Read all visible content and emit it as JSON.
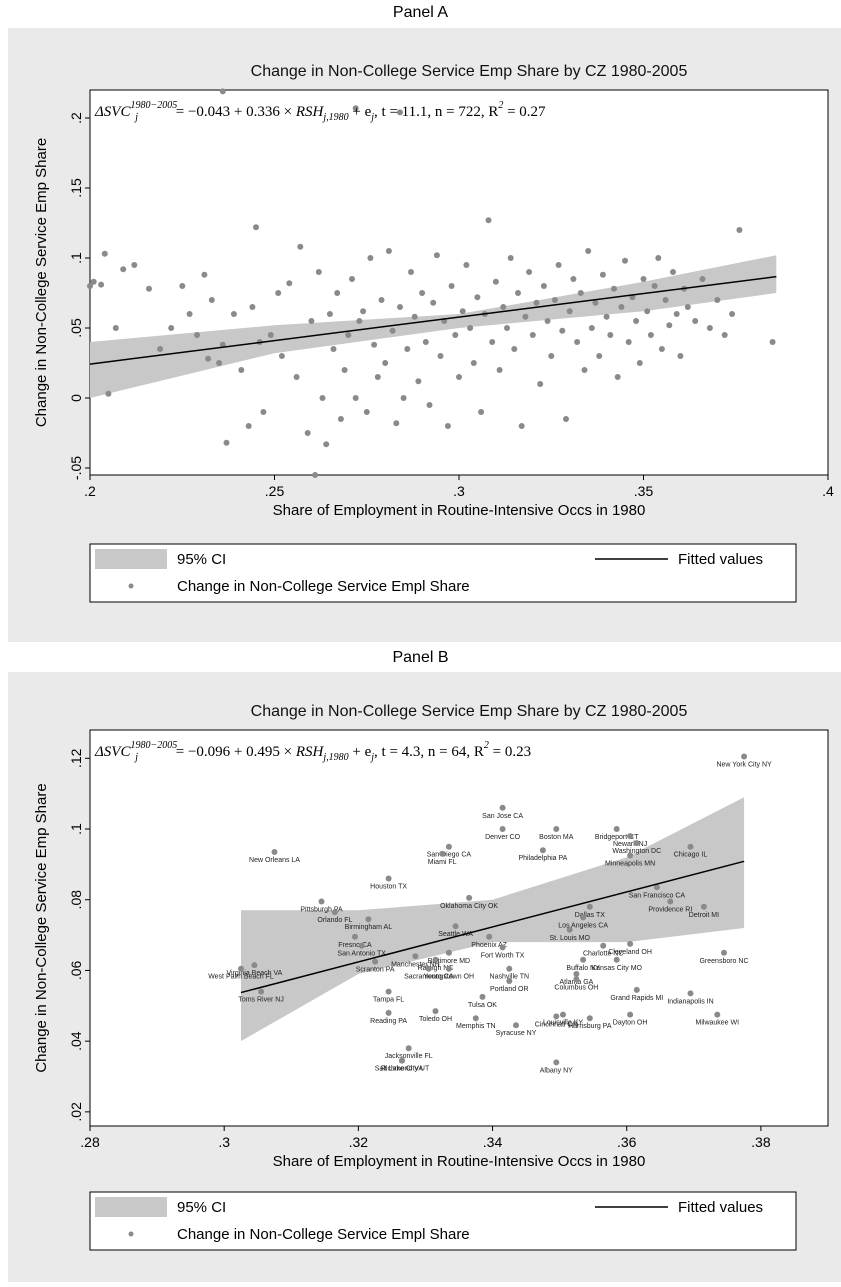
{
  "chart_data": [
    {
      "type": "scatter",
      "panel_label": "Panel A",
      "title": "Change in Non-College Service Emp Share by CZ 1980-2005",
      "equation": "ΔSVC_j^1980−2005 = −0.043 + 0.336 × RSH_j,1980 + e_j, t = 11.1, n = 722, R² = 0.27",
      "equation_parts": {
        "lhs": "ΔSVC",
        "sup": "1980−2005",
        "sub": "j",
        "rhs_a": " = −0.043 + 0.336 × ",
        "rsh": "RSH",
        "rsh_sub": "j,1980",
        "rhs_b": " + e",
        "e_sub": "j",
        "stats": ", t = 11.1, n = 722, R",
        "r_sup": "2",
        "r_val": " = 0.27"
      },
      "xlabel": "Share of Employment in Routine-Intensive Occs in 1980",
      "ylabel": "Change in Non-College Service Emp Share",
      "xlim": [
        0.2,
        0.4
      ],
      "ylim": [
        -0.055,
        0.22
      ],
      "xticks": [
        0.2,
        0.25,
        0.3,
        0.35,
        0.4
      ],
      "xtick_labels": [
        ".2",
        ".25",
        ".3",
        ".35",
        ".4"
      ],
      "yticks": [
        -0.05,
        0,
        0.05,
        0.1,
        0.15,
        0.2
      ],
      "ytick_labels": [
        "-.05",
        "0",
        ".05",
        ".1",
        ".15",
        ".2"
      ],
      "fit": {
        "intercept": -0.043,
        "slope": 0.336,
        "x_range": [
          0.2,
          0.386
        ]
      },
      "ci": {
        "x": [
          0.2,
          0.25,
          0.3,
          0.35,
          0.386
        ],
        "lower": [
          0.0,
          0.032,
          0.05,
          0.062,
          0.075
        ],
        "upper": [
          0.04,
          0.052,
          0.06,
          0.083,
          0.102
        ]
      },
      "legend": {
        "ci_label": "95% CI",
        "fit_label": "Fitted values",
        "points_label": "Change in Non-College Service Empl Share",
        "position": "bottom"
      },
      "points_note": "approximately 722 points; cloud estimated",
      "points": [
        [
          0.2,
          0.08
        ],
        [
          0.201,
          0.083
        ],
        [
          0.203,
          0.081
        ],
        [
          0.204,
          0.103
        ],
        [
          0.205,
          0.003
        ],
        [
          0.207,
          0.05
        ],
        [
          0.209,
          0.092
        ],
        [
          0.212,
          0.095
        ],
        [
          0.216,
          0.078
        ],
        [
          0.219,
          0.035
        ],
        [
          0.222,
          0.05
        ],
        [
          0.225,
          0.08
        ],
        [
          0.227,
          0.06
        ],
        [
          0.229,
          0.045
        ],
        [
          0.231,
          0.088
        ],
        [
          0.232,
          0.028
        ],
        [
          0.233,
          0.07
        ],
        [
          0.235,
          0.025
        ],
        [
          0.236,
          0.038
        ],
        [
          0.237,
          -0.032
        ],
        [
          0.239,
          0.06
        ],
        [
          0.241,
          0.02
        ],
        [
          0.243,
          -0.02
        ],
        [
          0.244,
          0.065
        ],
        [
          0.245,
          0.122
        ],
        [
          0.246,
          0.04
        ],
        [
          0.247,
          -0.01
        ],
        [
          0.249,
          0.045
        ],
        [
          0.251,
          0.075
        ],
        [
          0.252,
          0.03
        ],
        [
          0.254,
          0.082
        ],
        [
          0.256,
          0.015
        ],
        [
          0.257,
          0.108
        ],
        [
          0.259,
          -0.025
        ],
        [
          0.26,
          0.055
        ],
        [
          0.261,
          -0.055
        ],
        [
          0.262,
          0.09
        ],
        [
          0.263,
          0.0
        ],
        [
          0.264,
          -0.033
        ],
        [
          0.265,
          0.06
        ],
        [
          0.266,
          0.035
        ],
        [
          0.267,
          0.075
        ],
        [
          0.268,
          -0.015
        ],
        [
          0.269,
          0.02
        ],
        [
          0.27,
          0.045
        ],
        [
          0.271,
          0.085
        ],
        [
          0.272,
          0.0
        ],
        [
          0.273,
          0.055
        ],
        [
          0.274,
          0.062
        ],
        [
          0.275,
          -0.01
        ],
        [
          0.276,
          0.1
        ],
        [
          0.277,
          0.038
        ],
        [
          0.278,
          0.015
        ],
        [
          0.279,
          0.07
        ],
        [
          0.28,
          0.025
        ],
        [
          0.281,
          0.105
        ],
        [
          0.282,
          0.048
        ],
        [
          0.283,
          -0.018
        ],
        [
          0.284,
          0.065
        ],
        [
          0.285,
          0.0
        ],
        [
          0.286,
          0.035
        ],
        [
          0.287,
          0.09
        ],
        [
          0.288,
          0.058
        ],
        [
          0.289,
          0.012
        ],
        [
          0.29,
          0.075
        ],
        [
          0.291,
          0.04
        ],
        [
          0.292,
          -0.005
        ],
        [
          0.293,
          0.068
        ],
        [
          0.294,
          0.102
        ],
        [
          0.295,
          0.03
        ],
        [
          0.296,
          0.055
        ],
        [
          0.297,
          -0.02
        ],
        [
          0.298,
          0.08
        ],
        [
          0.299,
          0.045
        ],
        [
          0.3,
          0.015
        ],
        [
          0.301,
          0.062
        ],
        [
          0.302,
          0.095
        ],
        [
          0.303,
          0.05
        ],
        [
          0.304,
          0.025
        ],
        [
          0.305,
          0.072
        ],
        [
          0.306,
          -0.01
        ],
        [
          0.307,
          0.06
        ],
        [
          0.308,
          0.127
        ],
        [
          0.309,
          0.04
        ],
        [
          0.31,
          0.083
        ],
        [
          0.311,
          0.02
        ],
        [
          0.312,
          0.065
        ],
        [
          0.313,
          0.05
        ],
        [
          0.314,
          0.1
        ],
        [
          0.315,
          0.035
        ],
        [
          0.316,
          0.075
        ],
        [
          0.317,
          -0.02
        ],
        [
          0.318,
          0.058
        ],
        [
          0.319,
          0.09
        ],
        [
          0.32,
          0.045
        ],
        [
          0.321,
          0.068
        ],
        [
          0.322,
          0.01
        ],
        [
          0.323,
          0.08
        ],
        [
          0.324,
          0.055
        ],
        [
          0.325,
          0.03
        ],
        [
          0.326,
          0.07
        ],
        [
          0.327,
          0.095
        ],
        [
          0.328,
          0.048
        ],
        [
          0.329,
          -0.015
        ],
        [
          0.33,
          0.062
        ],
        [
          0.331,
          0.085
        ],
        [
          0.332,
          0.04
        ],
        [
          0.333,
          0.075
        ],
        [
          0.334,
          0.02
        ],
        [
          0.335,
          0.105
        ],
        [
          0.336,
          0.05
        ],
        [
          0.337,
          0.068
        ],
        [
          0.338,
          0.03
        ],
        [
          0.339,
          0.088
        ],
        [
          0.34,
          0.058
        ],
        [
          0.341,
          0.045
        ],
        [
          0.342,
          0.078
        ],
        [
          0.343,
          0.015
        ],
        [
          0.344,
          0.065
        ],
        [
          0.345,
          0.098
        ],
        [
          0.346,
          0.04
        ],
        [
          0.347,
          0.072
        ],
        [
          0.348,
          0.055
        ],
        [
          0.349,
          0.025
        ],
        [
          0.35,
          0.085
        ],
        [
          0.351,
          0.062
        ],
        [
          0.352,
          0.045
        ],
        [
          0.353,
          0.08
        ],
        [
          0.354,
          0.1
        ],
        [
          0.355,
          0.035
        ],
        [
          0.356,
          0.07
        ],
        [
          0.357,
          0.052
        ],
        [
          0.358,
          0.09
        ],
        [
          0.359,
          0.06
        ],
        [
          0.36,
          0.03
        ],
        [
          0.361,
          0.078
        ],
        [
          0.362,
          0.065
        ],
        [
          0.364,
          0.055
        ],
        [
          0.366,
          0.085
        ],
        [
          0.368,
          0.05
        ],
        [
          0.37,
          0.07
        ],
        [
          0.372,
          0.045
        ],
        [
          0.374,
          0.06
        ],
        [
          0.376,
          0.12
        ],
        [
          0.385,
          0.04
        ],
        [
          0.236,
          0.219
        ],
        [
          0.272,
          0.207
        ],
        [
          0.284,
          0.204
        ]
      ]
    },
    {
      "type": "scatter",
      "panel_label": "Panel B",
      "title": "Change in Non-College Service Emp Share by CZ 1980-2005",
      "equation": "ΔSVC_j^1980−2005 = −0.096 + 0.495 × RSH_j,1980 + e_j, t = 4.3, n = 64, R² = 0.23",
      "equation_parts": {
        "lhs": "ΔSVC",
        "sup": "1980−2005",
        "sub": "j",
        "rhs_a": " = −0.096 + 0.495 × ",
        "rsh": "RSH",
        "rsh_sub": "j,1980",
        "rhs_b": " + e",
        "e_sub": "j",
        "stats": ", t = 4.3, n = 64, R",
        "r_sup": "2",
        "r_val": " = 0.23"
      },
      "xlabel": "Share of Employment in Routine-Intensive Occs in 1980",
      "ylabel": "Change in Non-College Service Emp Share",
      "xlim": [
        0.28,
        0.39
      ],
      "ylim": [
        0.016,
        0.128
      ],
      "xticks": [
        0.28,
        0.3,
        0.32,
        0.34,
        0.36,
        0.38
      ],
      "xtick_labels": [
        ".28",
        ".3",
        ".32",
        ".34",
        ".36",
        ".38"
      ],
      "yticks": [
        0.02,
        0.04,
        0.06,
        0.08,
        0.1,
        0.12
      ],
      "ytick_labels": [
        ".02",
        ".04",
        ".06",
        ".08",
        ".1",
        ".12"
      ],
      "fit": {
        "intercept": -0.096,
        "slope": 0.495,
        "x_range": [
          0.3025,
          0.3775
        ]
      },
      "ci": {
        "x": [
          0.3025,
          0.32,
          0.34,
          0.36,
          0.3775
        ],
        "lower": [
          0.04,
          0.059,
          0.068,
          0.068,
          0.072
        ],
        "upper": [
          0.077,
          0.077,
          0.08,
          0.092,
          0.109
        ]
      },
      "legend": {
        "ci_label": "95% CI",
        "fit_label": "Fitted values",
        "points_label": "Change in Non-College Service Empl Share",
        "position": "bottom"
      },
      "points": [
        {
          "x": 0.3775,
          "y": 0.1205,
          "label": "New York City NY"
        },
        {
          "x": 0.3415,
          "y": 0.106,
          "label": "San Jose CA"
        },
        {
          "x": 0.3415,
          "y": 0.1,
          "label": "Denver CO"
        },
        {
          "x": 0.3495,
          "y": 0.1,
          "label": "Boston MA"
        },
        {
          "x": 0.3585,
          "y": 0.1,
          "label": "Bridgeport CT"
        },
        {
          "x": 0.3605,
          "y": 0.098,
          "label": "Newark NJ"
        },
        {
          "x": 0.3615,
          "y": 0.096,
          "label": "Washington DC"
        },
        {
          "x": 0.3695,
          "y": 0.095,
          "label": "Chicago IL"
        },
        {
          "x": 0.3335,
          "y": 0.095,
          "label": "San Diego CA"
        },
        {
          "x": 0.3325,
          "y": 0.093,
          "label": "Miami FL"
        },
        {
          "x": 0.3475,
          "y": 0.094,
          "label": "Philadelphia PA"
        },
        {
          "x": 0.3605,
          "y": 0.0925,
          "label": "Minneapolis MN"
        },
        {
          "x": 0.3075,
          "y": 0.0935,
          "label": "New Orleans LA"
        },
        {
          "x": 0.3245,
          "y": 0.086,
          "label": "Houston TX"
        },
        {
          "x": 0.3645,
          "y": 0.0835,
          "label": "San Francisco CA"
        },
        {
          "x": 0.3145,
          "y": 0.0795,
          "label": "Pittsburgh PA"
        },
        {
          "x": 0.3365,
          "y": 0.0805,
          "label": "Oklahoma City OK"
        },
        {
          "x": 0.3665,
          "y": 0.0795,
          "label": "Providence RI"
        },
        {
          "x": 0.3715,
          "y": 0.078,
          "label": "Detroit MI"
        },
        {
          "x": 0.3165,
          "y": 0.0765,
          "label": "Orlando FL"
        },
        {
          "x": 0.3545,
          "y": 0.078,
          "label": "Dallas TX"
        },
        {
          "x": 0.3535,
          "y": 0.075,
          "label": "Los Angeles CA"
        },
        {
          "x": 0.3345,
          "y": 0.0725,
          "label": "Seattle WA"
        },
        {
          "x": 0.3215,
          "y": 0.0745,
          "label": "Birmingham AL"
        },
        {
          "x": 0.3395,
          "y": 0.0695,
          "label": "Phoenix AZ"
        },
        {
          "x": 0.3515,
          "y": 0.0715,
          "label": "St. Louis MO"
        },
        {
          "x": 0.3195,
          "y": 0.0695,
          "label": "Fresno CA"
        },
        {
          "x": 0.3415,
          "y": 0.0665,
          "label": "Fort Worth TX"
        },
        {
          "x": 0.3565,
          "y": 0.067,
          "label": "Charlotte NC"
        },
        {
          "x": 0.3605,
          "y": 0.0675,
          "label": "Cleveland OH"
        },
        {
          "x": 0.3205,
          "y": 0.067,
          "label": "San Antonio TX"
        },
        {
          "x": 0.3335,
          "y": 0.065,
          "label": "Baltimore MD"
        },
        {
          "x": 0.3285,
          "y": 0.064,
          "label": "Manchester NH"
        },
        {
          "x": 0.3315,
          "y": 0.063,
          "label": "Raleigh NC"
        },
        {
          "x": 0.3535,
          "y": 0.063,
          "label": "Buffalo NY"
        },
        {
          "x": 0.3585,
          "y": 0.063,
          "label": "Kansas City MO"
        },
        {
          "x": 0.3745,
          "y": 0.065,
          "label": "Greensboro NC"
        },
        {
          "x": 0.3045,
          "y": 0.0615,
          "label": "Virginia Beach VA"
        },
        {
          "x": 0.3225,
          "y": 0.0625,
          "label": "Scranton PA"
        },
        {
          "x": 0.3305,
          "y": 0.0605,
          "label": "Sacramento CA"
        },
        {
          "x": 0.3335,
          "y": 0.0605,
          "label": "Youngstown OH"
        },
        {
          "x": 0.3425,
          "y": 0.0605,
          "label": "Nashville TN"
        },
        {
          "x": 0.3025,
          "y": 0.0605,
          "label": "West Palm Beach FL"
        },
        {
          "x": 0.3425,
          "y": 0.057,
          "label": "Portland OR"
        },
        {
          "x": 0.3525,
          "y": 0.059,
          "label": "Atlanta GA"
        },
        {
          "x": 0.3525,
          "y": 0.0575,
          "label": "Columbus OH"
        },
        {
          "x": 0.3055,
          "y": 0.054,
          "label": "Toms River NJ"
        },
        {
          "x": 0.3245,
          "y": 0.054,
          "label": "Tampa FL"
        },
        {
          "x": 0.3615,
          "y": 0.0545,
          "label": "Grand Rapids MI"
        },
        {
          "x": 0.3695,
          "y": 0.0535,
          "label": "Indianapolis IN"
        },
        {
          "x": 0.3385,
          "y": 0.0525,
          "label": "Tulsa OK"
        },
        {
          "x": 0.3315,
          "y": 0.0485,
          "label": "Toledo OH"
        },
        {
          "x": 0.3505,
          "y": 0.0475,
          "label": "Louisville KY"
        },
        {
          "x": 0.3375,
          "y": 0.0465,
          "label": "Memphis TN"
        },
        {
          "x": 0.3495,
          "y": 0.047,
          "label": "Cincinnati OH"
        },
        {
          "x": 0.3545,
          "y": 0.0465,
          "label": "Harrisburg PA"
        },
        {
          "x": 0.3605,
          "y": 0.0475,
          "label": "Dayton OH"
        },
        {
          "x": 0.3735,
          "y": 0.0475,
          "label": "Milwaukee WI"
        },
        {
          "x": 0.3245,
          "y": 0.048,
          "label": "Reading PA"
        },
        {
          "x": 0.3435,
          "y": 0.0445,
          "label": "Syracuse NY"
        },
        {
          "x": 0.3275,
          "y": 0.038,
          "label": "Jacksonville FL"
        },
        {
          "x": 0.3265,
          "y": 0.0345,
          "label": "Richmond VA"
        },
        {
          "x": 0.3265,
          "y": 0.0345,
          "label": "Salt Lake City UT"
        },
        {
          "x": 0.3495,
          "y": 0.034,
          "label": "Albany NY"
        }
      ]
    }
  ]
}
